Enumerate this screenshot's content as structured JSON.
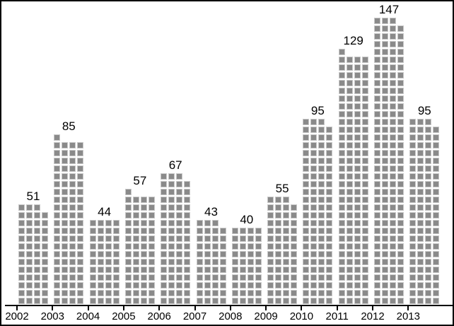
{
  "chart_data": {
    "type": "bar",
    "subtype": "waffle-pictogram",
    "categories": [
      "2002",
      "2003",
      "2004",
      "2005",
      "2006",
      "2007",
      "2008",
      "2009",
      "2010",
      "2011",
      "2012",
      "2013"
    ],
    "values": [
      51,
      85,
      44,
      57,
      67,
      43,
      40,
      55,
      95,
      129,
      147,
      95
    ],
    "columns_per_bar": 4,
    "units_per_square": 1,
    "legend": "none",
    "grid": "off",
    "axis": "x-only",
    "colors": {
      "square_fill": "#8a8a8a",
      "square_border": "#c8c8c8",
      "axis": "#000000",
      "text": "#000000",
      "background": "#ffffff",
      "frame_border": "#000000"
    }
  }
}
